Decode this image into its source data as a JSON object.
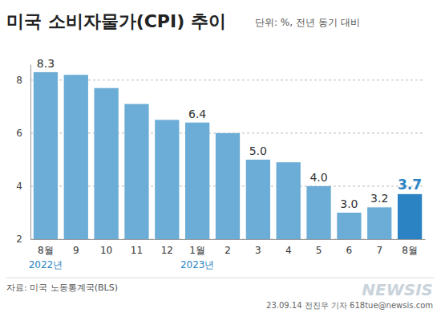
{
  "chart_data": {
    "type": "bar",
    "title": "미국 소비자물가(CPI) 추이",
    "subtitle": "단위: %, 전년 동기 대비",
    "categories": [
      "8월",
      "9",
      "10",
      "11",
      "12",
      "1월",
      "2",
      "3",
      "4",
      "5",
      "6",
      "7",
      "8월"
    ],
    "year_labels": [
      "2022년",
      null,
      null,
      null,
      null,
      "2023년",
      null,
      null,
      null,
      null,
      null,
      null,
      null
    ],
    "values": [
      8.3,
      8.2,
      7.7,
      7.1,
      6.5,
      6.4,
      6.0,
      5.0,
      4.9,
      4.0,
      3.0,
      3.2,
      3.7
    ],
    "value_labels": [
      "8.3",
      null,
      null,
      null,
      null,
      "6.4",
      null,
      "5.0",
      null,
      "4.0",
      "3.0",
      "3.2",
      "3.7"
    ],
    "data_labels": true,
    "colors": [
      "#6badd6",
      "#6badd6",
      "#6badd6",
      "#6badd6",
      "#6badd6",
      "#6badd6",
      "#6badd6",
      "#6badd6",
      "#6badd6",
      "#6badd6",
      "#6badd6",
      "#6badd6",
      "#2b83c4"
    ],
    "ylim": [
      2,
      8.6
    ],
    "yticks": [
      2,
      4,
      6,
      8
    ],
    "grid": true,
    "source": "자료: 미국 노동통계국(BLS)",
    "credit": "23.09.14 전진우 기자 618tue@newsis.com",
    "logo": "NEWSIS"
  }
}
